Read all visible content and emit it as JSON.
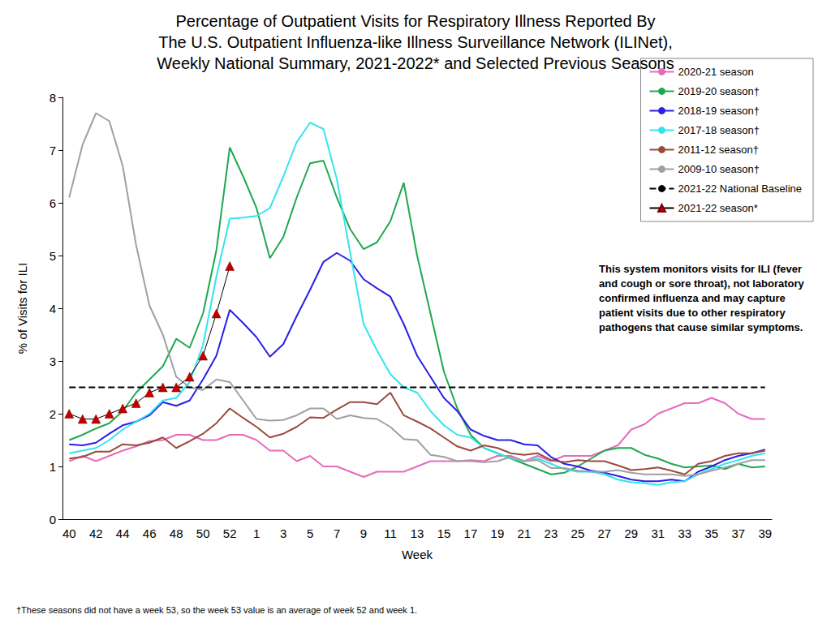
{
  "chart_data": {
    "type": "line",
    "title": "Percentage of Outpatient Visits for Respiratory Illness Reported By\nThe U.S. Outpatient Influenza-like Illness Surveillance Network (ILINet),\nWeekly National Summary, 2021-2022* and Selected Previous Seasons",
    "x_label": "Week",
    "y_label": "% of Visits for ILI",
    "annotation": "This system monitors visits for ILI (fever and cough or sore throat), not laboratory confirmed influenza and may capture patient visits due to other respiratory pathogens that cause similar symptoms.",
    "footnote": "†These seasons did not have a week 53, so the week 53 value is an average of week 52 and week 1.",
    "categories": [
      "40",
      null,
      "42",
      null,
      "44",
      null,
      "46",
      null,
      "48",
      null,
      "50",
      null,
      "52",
      null,
      "1",
      null,
      "3",
      null,
      "5",
      null,
      "7",
      null,
      "9",
      null,
      "11",
      null,
      "13",
      null,
      "15",
      null,
      "17",
      null,
      "19",
      null,
      "21",
      null,
      "23",
      null,
      "25",
      null,
      "27",
      null,
      "29",
      null,
      "31",
      null,
      "33",
      null,
      "35",
      null,
      "37",
      null,
      "39"
    ],
    "ylim": [
      0,
      8
    ],
    "yticks": [
      0,
      1,
      2,
      3,
      4,
      5,
      6,
      7,
      8
    ],
    "grid": false,
    "legend": "top-right",
    "series": [
      {
        "name": "2020-21 season",
        "color": "#e46cbb",
        "values": [
          1.1,
          1.2,
          1.1,
          1.2,
          1.3,
          1.38,
          1.48,
          1.5,
          1.6,
          1.6,
          1.5,
          1.5,
          1.6,
          1.6,
          1.5,
          1.3,
          1.3,
          1.1,
          1.2,
          1.0,
          1.0,
          0.9,
          0.8,
          0.9,
          0.9,
          0.9,
          1.0,
          1.1,
          1.1,
          1.1,
          1.12,
          1.1,
          1.2,
          1.2,
          1.1,
          1.2,
          1.1,
          1.2,
          1.2,
          1.2,
          1.3,
          1.4,
          1.7,
          1.8,
          2.0,
          2.1,
          2.2,
          2.2,
          2.3,
          2.2,
          2.0,
          1.9,
          1.9
        ]
      },
      {
        "name": "2019-20 season†",
        "color": "#1fa84f",
        "values": [
          1.5,
          1.6,
          1.72,
          1.82,
          2.05,
          2.4,
          2.65,
          2.9,
          3.42,
          3.25,
          3.9,
          5.1,
          7.05,
          6.5,
          5.9,
          4.95,
          5.35,
          6.1,
          6.75,
          6.8,
          6.1,
          5.5,
          5.12,
          5.25,
          5.65,
          6.38,
          5.0,
          3.9,
          2.8,
          2.1,
          1.6,
          1.35,
          1.25,
          1.15,
          1.05,
          0.95,
          0.85,
          0.88,
          1.0,
          1.15,
          1.3,
          1.35,
          1.35,
          1.22,
          1.15,
          1.05,
          0.98,
          1.0,
          1.02,
          0.95,
          1.05,
          0.98,
          1.0
        ]
      },
      {
        "name": "2018-19 season†",
        "color": "#2a1fe6",
        "values": [
          1.42,
          1.4,
          1.45,
          1.62,
          1.78,
          1.85,
          1.97,
          2.22,
          2.15,
          2.25,
          2.65,
          3.1,
          3.97,
          3.72,
          3.45,
          3.08,
          3.32,
          3.85,
          4.35,
          4.88,
          5.05,
          4.9,
          4.55,
          4.38,
          4.22,
          3.7,
          3.1,
          2.7,
          2.3,
          2.05,
          1.7,
          1.58,
          1.5,
          1.5,
          1.42,
          1.4,
          1.18,
          1.05,
          1.0,
          0.92,
          0.88,
          0.82,
          0.75,
          0.72,
          0.72,
          0.75,
          0.72,
          0.9,
          1.0,
          1.12,
          1.2,
          1.25,
          1.32
        ]
      },
      {
        "name": "2017-18 season†",
        "color": "#33e4f0",
        "values": [
          1.25,
          1.3,
          1.35,
          1.5,
          1.7,
          1.85,
          2.0,
          2.25,
          2.3,
          2.6,
          3.3,
          4.6,
          5.7,
          5.72,
          5.75,
          5.9,
          6.5,
          7.15,
          7.52,
          7.4,
          6.45,
          5.05,
          3.7,
          3.2,
          2.75,
          2.5,
          2.4,
          2.05,
          1.78,
          1.6,
          1.55,
          1.35,
          1.25,
          1.15,
          1.1,
          1.15,
          1.05,
          0.95,
          0.9,
          0.9,
          0.85,
          0.75,
          0.7,
          0.68,
          0.65,
          0.7,
          0.72,
          0.85,
          0.95,
          1.05,
          1.12,
          1.2,
          1.25
        ]
      },
      {
        "name": "2011-12 season†",
        "color": "#9b4a3e",
        "values": [
          1.15,
          1.18,
          1.28,
          1.28,
          1.42,
          1.4,
          1.45,
          1.55,
          1.35,
          1.48,
          1.62,
          1.82,
          2.1,
          1.92,
          1.75,
          1.55,
          1.62,
          1.75,
          1.93,
          1.92,
          2.08,
          2.22,
          2.22,
          2.18,
          2.4,
          1.97,
          1.85,
          1.72,
          1.55,
          1.38,
          1.3,
          1.4,
          1.35,
          1.25,
          1.22,
          1.25,
          1.12,
          1.08,
          1.12,
          1.1,
          1.1,
          1.02,
          0.93,
          0.95,
          0.98,
          0.92,
          0.85,
          1.05,
          1.1,
          1.2,
          1.25,
          1.25,
          1.3
        ]
      },
      {
        "name": "2009-10 season†",
        "color": "#a0a0a0",
        "values": [
          6.1,
          7.1,
          7.7,
          7.55,
          6.7,
          5.2,
          4.05,
          3.5,
          2.7,
          2.5,
          2.45,
          2.65,
          2.6,
          2.25,
          1.9,
          1.87,
          1.88,
          1.97,
          2.1,
          2.1,
          1.9,
          1.97,
          1.92,
          1.9,
          1.75,
          1.52,
          1.5,
          1.22,
          1.18,
          1.1,
          1.1,
          1.08,
          1.1,
          1.18,
          1.1,
          1.12,
          0.97,
          0.97,
          0.92,
          0.9,
          0.9,
          0.93,
          0.88,
          0.85,
          0.85,
          0.85,
          0.82,
          0.85,
          0.92,
          0.98,
          1.05,
          1.12,
          1.12
        ]
      },
      {
        "name": "2021-22 National Baseline",
        "color": "#000000",
        "line_style": "dashed",
        "values": [
          2.5,
          2.5,
          2.5,
          2.5,
          2.5,
          2.5,
          2.5,
          2.5,
          2.5,
          2.5,
          2.5,
          2.5,
          2.5,
          2.5,
          2.5,
          2.5,
          2.5,
          2.5,
          2.5,
          2.5,
          2.5,
          2.5,
          2.5,
          2.5,
          2.5,
          2.5,
          2.5,
          2.5,
          2.5,
          2.5,
          2.5,
          2.5,
          2.5,
          2.5,
          2.5,
          2.5,
          2.5,
          2.5,
          2.5,
          2.5,
          2.5,
          2.5,
          2.5,
          2.5,
          2.5,
          2.5,
          2.5,
          2.5,
          2.5,
          2.5,
          2.5,
          2.5,
          2.5
        ]
      },
      {
        "name": "2021-22 season*",
        "color": "#c00000",
        "marker": "triangle",
        "values": [
          2.0,
          1.9,
          1.9,
          2.0,
          2.1,
          2.2,
          2.4,
          2.5,
          2.5,
          2.7,
          3.1,
          3.9,
          4.8,
          null,
          null,
          null,
          null,
          null,
          null,
          null,
          null,
          null,
          null,
          null,
          null,
          null,
          null,
          null,
          null,
          null,
          null,
          null,
          null,
          null,
          null,
          null,
          null,
          null,
          null,
          null,
          null,
          null,
          null,
          null,
          null,
          null,
          null,
          null,
          null,
          null,
          null,
          null,
          null
        ]
      }
    ]
  }
}
